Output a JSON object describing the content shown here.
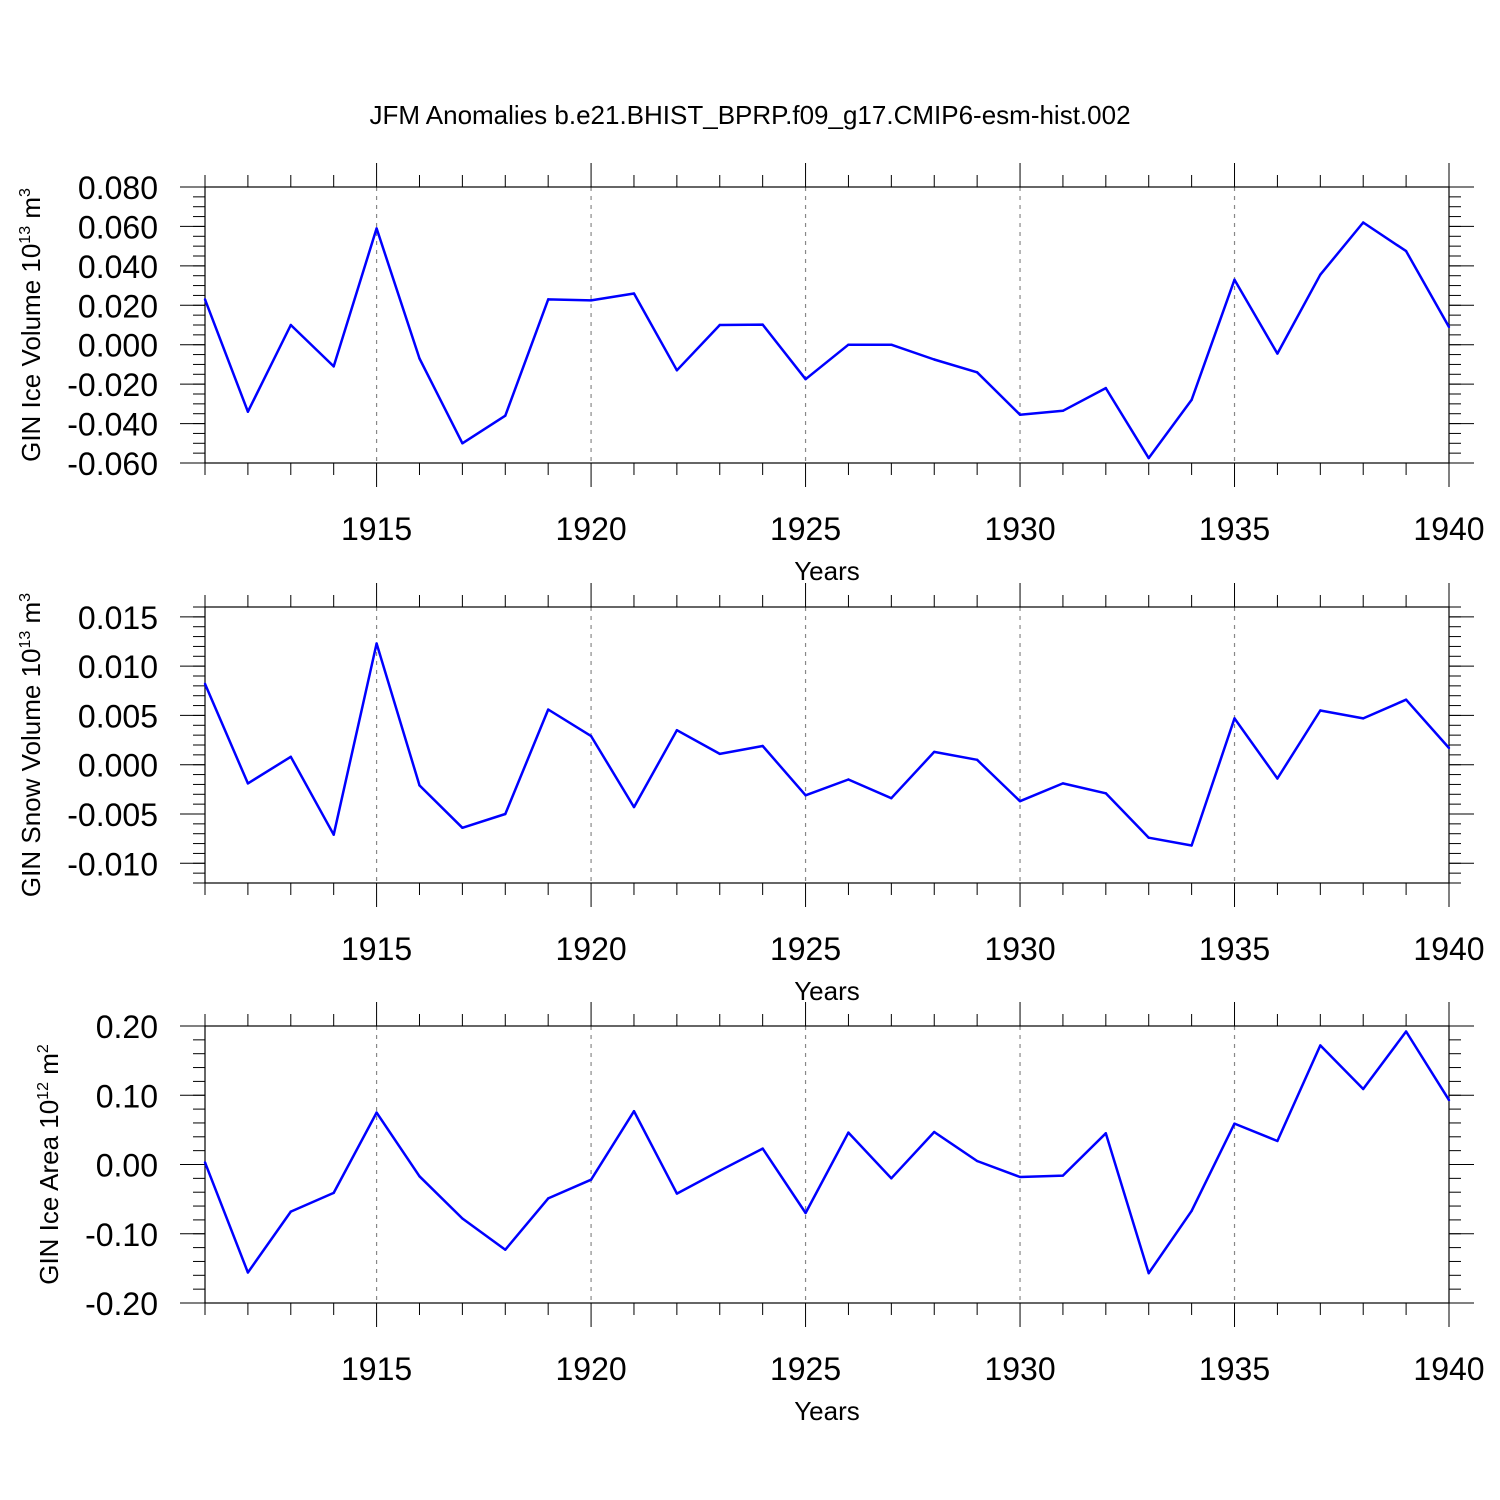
{
  "title": "JFM Anomalies b.e21.BHIST_BPRP.f09_g17.CMIP6-esm-hist.002",
  "colors": {
    "line": "#0000ff",
    "axis": "#000000",
    "grid": "#888888"
  },
  "chart_data": [
    {
      "type": "line",
      "ylabel": "GIN Ice Volume 10",
      "ylabel_exp": "13",
      "ylabel_unit": " m",
      "ylabel_unit_exp": "3",
      "xlabel": "Years",
      "xlim": [
        1911,
        1940
      ],
      "ylim": [
        -0.06,
        0.08
      ],
      "x_ticks": [
        1915,
        1920,
        1925,
        1930,
        1935,
        1940
      ],
      "x_tick_labels": [
        "1915",
        "1920",
        "1925",
        "1930",
        "1935",
        "1940"
      ],
      "y_ticks": [
        -0.06,
        -0.04,
        -0.02,
        0.0,
        0.02,
        0.04,
        0.06,
        0.08
      ],
      "y_tick_labels": [
        "-0.060",
        "-0.040",
        "-0.020",
        "0.000",
        "0.020",
        "0.040",
        "0.060",
        "0.080"
      ],
      "y_minor_step": 0.005,
      "grid": "vertical dashed at major x ticks",
      "x": [
        1911,
        1912,
        1913,
        1914,
        1915,
        1916,
        1917,
        1918,
        1919,
        1920,
        1921,
        1922,
        1923,
        1924,
        1925,
        1926,
        1927,
        1928,
        1929,
        1930,
        1931,
        1932,
        1933,
        1934,
        1935,
        1936,
        1937,
        1938,
        1939,
        1940
      ],
      "values": [
        0.023,
        -0.034,
        0.01,
        -0.011,
        0.059,
        -0.007,
        -0.05,
        -0.036,
        0.023,
        0.0225,
        0.026,
        -0.013,
        0.01,
        0.0102,
        -0.0175,
        0.0,
        0.0,
        -0.0075,
        -0.014,
        -0.0355,
        -0.0335,
        -0.022,
        -0.0575,
        -0.028,
        0.033,
        -0.0045,
        0.0355,
        0.062,
        0.0475,
        0.009
      ]
    },
    {
      "type": "line",
      "ylabel": "GIN Snow Volume 10",
      "ylabel_exp": "13",
      "ylabel_unit": " m",
      "ylabel_unit_exp": "3",
      "xlabel": "Years",
      "xlim": [
        1911,
        1940
      ],
      "ylim": [
        -0.012,
        0.016
      ],
      "x_ticks": [
        1915,
        1920,
        1925,
        1930,
        1935,
        1940
      ],
      "x_tick_labels": [
        "1915",
        "1920",
        "1925",
        "1930",
        "1935",
        "1940"
      ],
      "y_ticks": [
        -0.01,
        -0.005,
        0.0,
        0.005,
        0.01,
        0.015
      ],
      "y_tick_labels": [
        "-0.010",
        "-0.005",
        "0.000",
        "0.005",
        "0.010",
        "0.015"
      ],
      "y_minor_step": 0.001,
      "grid": "vertical dashed at major x ticks",
      "x": [
        1911,
        1912,
        1913,
        1914,
        1915,
        1916,
        1917,
        1918,
        1919,
        1920,
        1921,
        1922,
        1923,
        1924,
        1925,
        1926,
        1927,
        1928,
        1929,
        1930,
        1931,
        1932,
        1933,
        1934,
        1935,
        1936,
        1937,
        1938,
        1939,
        1940
      ],
      "values": [
        0.0082,
        -0.0019,
        0.0008,
        -0.0071,
        0.0123,
        -0.0021,
        -0.0064,
        -0.005,
        0.0056,
        0.0029,
        -0.0043,
        0.0035,
        0.0011,
        0.0019,
        -0.0031,
        -0.0015,
        -0.0034,
        0.0013,
        0.0005,
        -0.0037,
        -0.0019,
        -0.0029,
        -0.0074,
        -0.0082,
        0.0047,
        -0.0014,
        0.0055,
        0.0047,
        0.0066,
        0.0017
      ]
    },
    {
      "type": "line",
      "ylabel": "GIN Ice Area 10",
      "ylabel_exp": "12",
      "ylabel_unit": " m",
      "ylabel_unit_exp": "2",
      "xlabel": "Years",
      "xlim": [
        1911,
        1940
      ],
      "ylim": [
        -0.2,
        0.2
      ],
      "x_ticks": [
        1915,
        1920,
        1925,
        1930,
        1935,
        1940
      ],
      "x_tick_labels": [
        "1915",
        "1920",
        "1925",
        "1930",
        "1935",
        "1940"
      ],
      "y_ticks": [
        -0.2,
        -0.1,
        0.0,
        0.1,
        0.2
      ],
      "y_tick_labels": [
        "-0.20",
        "-0.10",
        "0.00",
        "0.10",
        "0.20"
      ],
      "y_minor_step": 0.02,
      "grid": "vertical dashed at major x ticks",
      "x": [
        1911,
        1912,
        1913,
        1914,
        1915,
        1916,
        1917,
        1918,
        1919,
        1920,
        1921,
        1922,
        1923,
        1924,
        1925,
        1926,
        1927,
        1928,
        1929,
        1930,
        1931,
        1932,
        1933,
        1934,
        1935,
        1936,
        1937,
        1938,
        1939,
        1940
      ],
      "values": [
        0.003,
        -0.156,
        -0.068,
        -0.041,
        0.075,
        -0.017,
        -0.078,
        -0.123,
        -0.049,
        -0.022,
        0.077,
        -0.042,
        -0.009,
        0.023,
        -0.07,
        0.046,
        -0.02,
        0.047,
        0.005,
        -0.018,
        -0.016,
        0.045,
        -0.157,
        -0.067,
        0.059,
        0.034,
        0.172,
        0.109,
        0.192,
        0.093
      ]
    }
  ]
}
